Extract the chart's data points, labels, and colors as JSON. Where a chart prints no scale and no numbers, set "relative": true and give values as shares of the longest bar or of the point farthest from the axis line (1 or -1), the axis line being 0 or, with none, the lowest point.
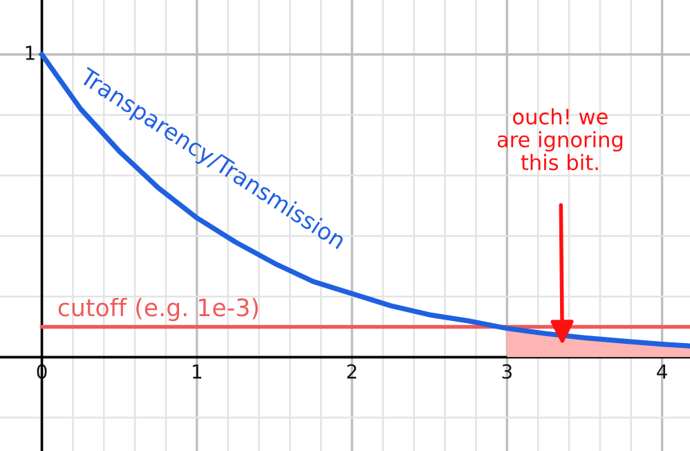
{
  "chart_data": {
    "type": "line",
    "x": [
      0,
      0.25,
      0.5,
      0.75,
      1,
      1.25,
      1.5,
      1.75,
      2,
      2.25,
      2.5,
      2.75,
      3,
      3.25,
      3.5,
      3.75,
      4,
      4.18
    ],
    "series": [
      {
        "name": "Transparency/Transmission",
        "color": "#2060e0",
        "values": [
          1,
          0.82,
          0.68,
          0.56,
          0.46,
          0.38,
          0.31,
          0.25,
          0.21,
          0.17,
          0.14,
          0.12,
          0.095,
          0.078,
          0.064,
          0.053,
          0.043,
          0.037
        ]
      },
      {
        "type": "area",
        "color": "#ffb4b4",
        "x": [
          3,
          3.25,
          3.5,
          3.75,
          4,
          4.18
        ],
        "values": [
          0.095,
          0.078,
          0.064,
          0.053,
          0.043,
          0.037
        ]
      }
    ],
    "relative": true,
    "xlim": [
      -0.27,
      4.18
    ],
    "xticks": [
      0,
      {
        "value": 0.2,
        "label": null
      },
      {
        "value": 0.4,
        "label": null
      },
      {
        "value": 0.6,
        "label": null
      },
      {
        "value": 0.8,
        "label": null
      },
      1,
      {
        "value": 1.2,
        "label": null
      },
      {
        "value": 1.4,
        "label": null
      },
      {
        "value": 1.6,
        "label": null
      },
      {
        "value": 1.8,
        "label": null
      },
      2,
      {
        "value": 2.2,
        "label": null
      },
      {
        "value": 2.4,
        "label": null
      },
      {
        "value": 2.6,
        "label": null
      },
      {
        "value": 2.8,
        "label": null
      },
      3,
      {
        "value": 3.2,
        "label": null
      },
      {
        "value": 3.4,
        "label": null
      },
      {
        "value": 3.6,
        "label": null
      },
      {
        "value": 3.8,
        "label": null
      },
      4
    ],
    "grid": true,
    "ref_lines": [
      {
        "axis": "y",
        "value": 0.1,
        "label": "cutoff (e.g. 1e-3)",
        "color": "#f05a5a"
      }
    ],
    "annotations": [
      "ouch! we\nare ignoring\nthis bit.",
      "1"
    ]
  }
}
